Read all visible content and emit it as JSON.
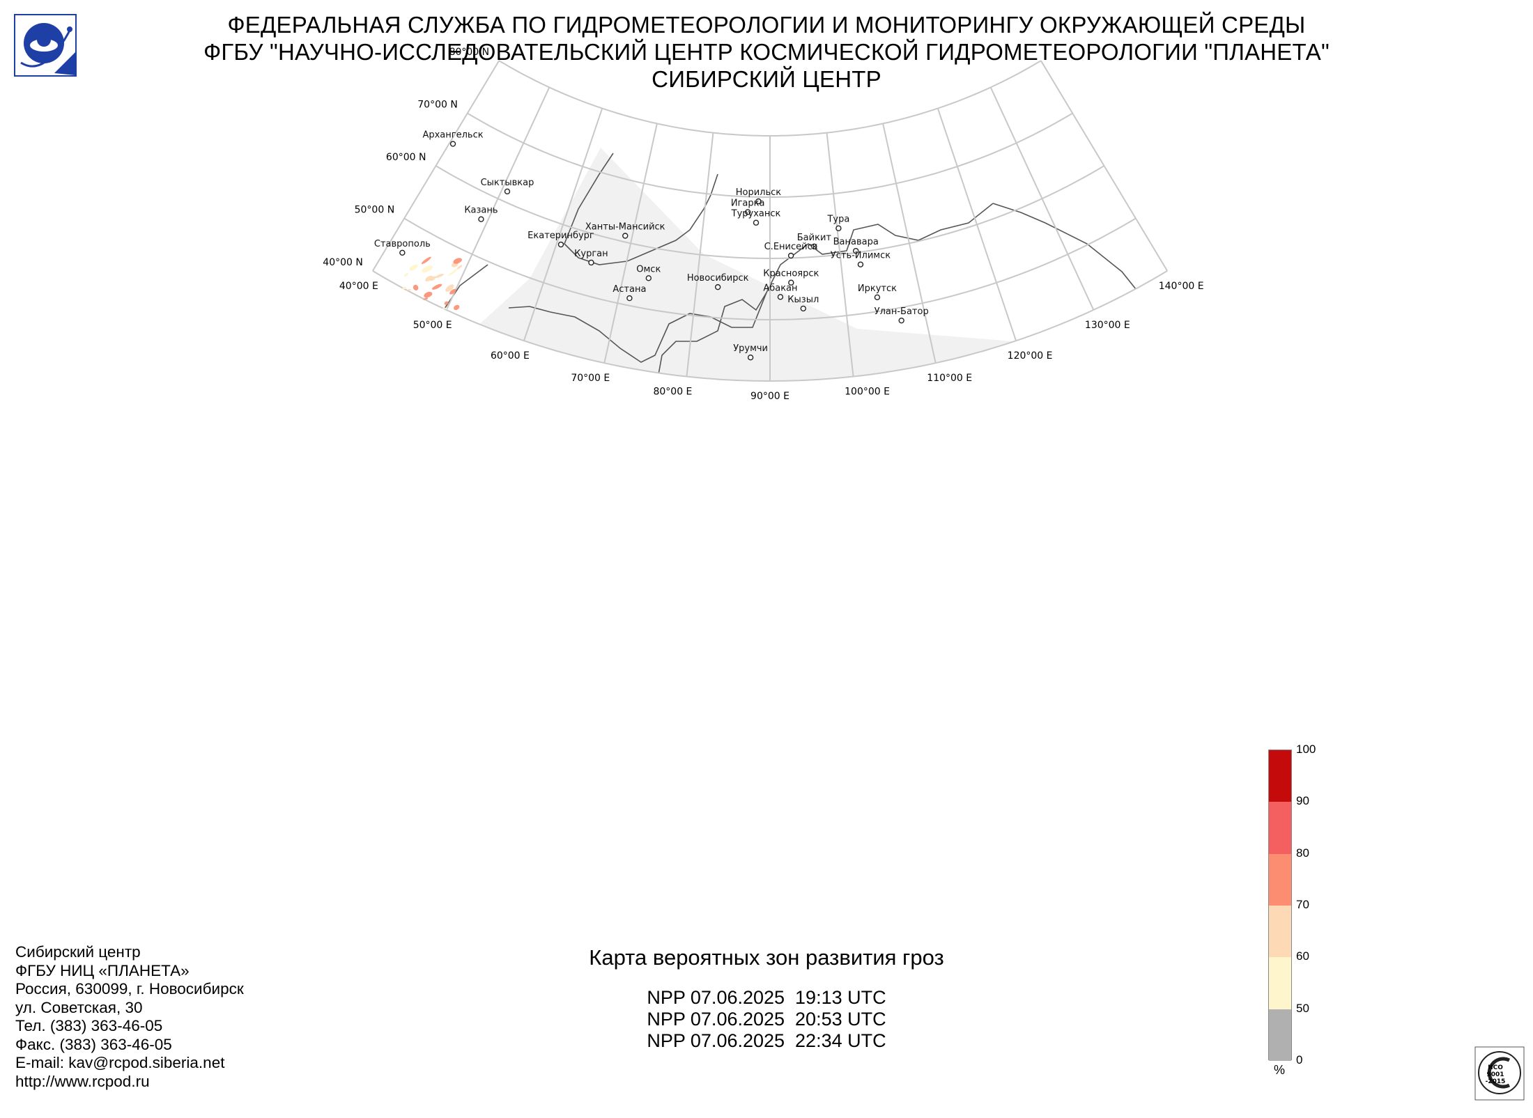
{
  "header": {
    "line1": "ФЕДЕРАЛЬНАЯ СЛУЖБА ПО ГИДРОМЕТЕОРОЛОГИИ И МОНИТОРИНГУ ОКРУЖАЮЩЕЙ СРЕДЫ",
    "line2": "ФГБУ \"НАУЧНО-ИССЛЕДОВАТЕЛЬСКИЙ ЦЕНТР КОСМИЧЕСКОЙ ГИДРОМЕТЕОРОЛОГИИ \"ПЛАНЕТА\"",
    "line3": "СИБИРСКИЙ ЦЕНТР"
  },
  "map": {
    "title": "Карта вероятных зон развития гроз",
    "passes": [
      "NPP 07.06.2025  19:13 UTC",
      "NPP 07.06.2025  20:53 UTC",
      "NPP 07.06.2025  22:34 UTC"
    ],
    "lat_labels": [
      "80°00 N",
      "70°00 N",
      "60°00 N",
      "50°00 N",
      "40°00 N"
    ],
    "lon_labels": [
      "40°00 E",
      "50°00 E",
      "60°00 E",
      "70°00 E",
      "80°00 E",
      "90°00 E",
      "100°00 E",
      "110°00 E",
      "120°00 E",
      "130°00 E",
      "140°00 E"
    ],
    "cities": [
      {
        "name": "Архангельск",
        "lat": 64.5,
        "lon": 40.5
      },
      {
        "name": "Сыктывкар",
        "lat": 61.7,
        "lon": 50.8
      },
      {
        "name": "Казань",
        "lat": 55.8,
        "lon": 49.1
      },
      {
        "name": "Екатеринбург",
        "lat": 56.8,
        "lon": 60.6
      },
      {
        "name": "Ханты-Мансийск",
        "lat": 61.0,
        "lon": 69.0
      },
      {
        "name": "Курган",
        "lat": 55.4,
        "lon": 65.3
      },
      {
        "name": "Ставрополь",
        "lat": 45.0,
        "lon": 42.0
      },
      {
        "name": "Омск",
        "lat": 55.0,
        "lon": 73.4
      },
      {
        "name": "Астана",
        "lat": 51.2,
        "lon": 71.4
      },
      {
        "name": "Новосибирск",
        "lat": 55.0,
        "lon": 82.9
      },
      {
        "name": "Красноярск",
        "lat": 56.0,
        "lon": 92.9
      },
      {
        "name": "Абакан",
        "lat": 53.7,
        "lon": 91.4
      },
      {
        "name": "Кызыл",
        "lat": 51.7,
        "lon": 94.4
      },
      {
        "name": "Норильск",
        "lat": 69.3,
        "lon": 88.2
      },
      {
        "name": "Игарка",
        "lat": 67.5,
        "lon": 86.6
      },
      {
        "name": "Туруханск",
        "lat": 65.8,
        "lon": 87.9
      },
      {
        "name": "Тура",
        "lat": 64.3,
        "lon": 100.2
      },
      {
        "name": "Байкит",
        "lat": 61.7,
        "lon": 96.4
      },
      {
        "name": "С.Енисейск",
        "lat": 60.4,
        "lon": 93.0
      },
      {
        "name": "Ванавара",
        "lat": 60.3,
        "lon": 102.3
      },
      {
        "name": "Усть-Илимск",
        "lat": 58.0,
        "lon": 102.7
      },
      {
        "name": "Иркутск",
        "lat": 52.3,
        "lon": 104.3
      },
      {
        "name": "Улан-Батор",
        "lat": 47.9,
        "lon": 106.9
      },
      {
        "name": "Урумчи",
        "lat": 43.8,
        "lon": 87.6
      }
    ]
  },
  "legend": {
    "unit": "%",
    "ticks": [
      "0",
      "50",
      "60",
      "70",
      "80",
      "90",
      "100"
    ],
    "colors": [
      "#b0b0b0",
      "#fff5cc",
      "#fdd9b5",
      "#fc8d70",
      "#f46060",
      "#c40a0a"
    ]
  },
  "address": {
    "lines": [
      "Сибирский центр",
      "ФГБУ НИЦ «ПЛАНЕТА»",
      "Россия, 630099, г. Новосибирск",
      "ул. Советская, 30",
      "Тел. (383) 363-46-05",
      "Факс. (383) 363-46-05",
      "E-mail: kav@rcpod.siberia.net",
      "http://www.rcpod.ru"
    ]
  },
  "logos": {
    "iso_text": [
      "ИСО",
      "9001",
      "-2015"
    ]
  }
}
